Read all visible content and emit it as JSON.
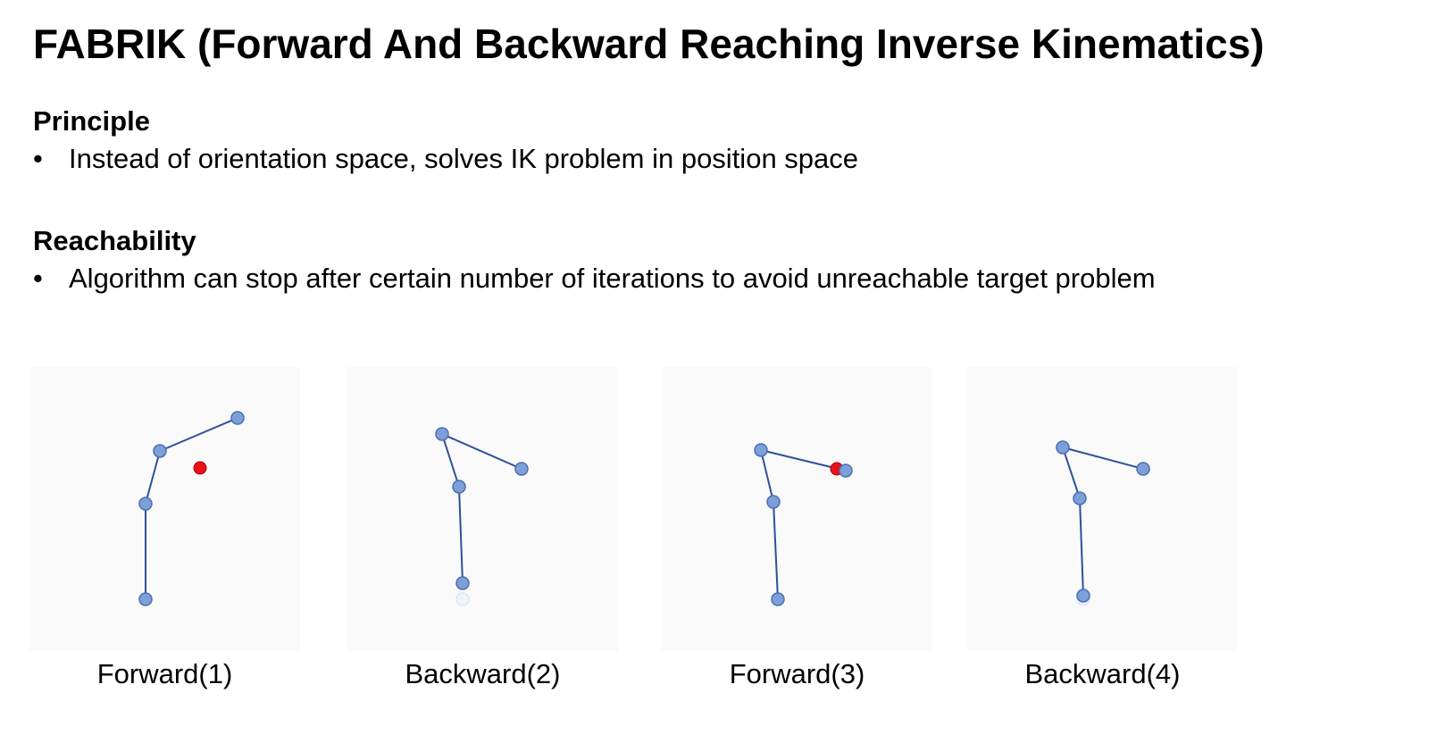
{
  "slide": {
    "title": "FABRIK (Forward And Backward Reaching Inverse Kinematics)"
  },
  "sections": [
    {
      "heading": "Principle",
      "bullets": [
        "Instead of orientation space, solves IK problem in position space"
      ]
    },
    {
      "heading": "Reachability",
      "bullets": [
        "Algorithm can stop after certain number of iterations to avoid unreachable target problem"
      ]
    }
  ],
  "bullet_glyph": "•",
  "colors": {
    "bone": "#2f4f9c",
    "joint_fill": "#7f9fd8",
    "joint_stroke": "#4a6fb5",
    "target": "#e8121b",
    "ghost_joint": "#dfe6f3",
    "panel_bg": "#fafafa"
  },
  "panels": [
    {
      "caption": "Forward(1)",
      "joints": [
        [
          130,
          260
        ],
        [
          130,
          153
        ],
        [
          146,
          94
        ],
        [
          233,
          57
        ]
      ],
      "target": [
        191,
        113
      ],
      "ghost": null
    },
    {
      "caption": "Backward(2)",
      "joints": [
        [
          129,
          242
        ],
        [
          125,
          134
        ],
        [
          106,
          75
        ],
        [
          195,
          114
        ]
      ],
      "target": null,
      "ghost": [
        129,
        260
      ]
    },
    {
      "caption": "Forward(3)",
      "joints": [
        [
          130,
          260
        ],
        [
          125,
          151
        ],
        [
          111,
          93
        ],
        [
          206,
          116
        ]
      ],
      "target": [
        196,
        114
      ],
      "ghost": null
    },
    {
      "caption": "Backward(4)",
      "joints": [
        [
          130,
          256
        ],
        [
          126,
          147
        ],
        [
          107,
          90
        ],
        [
          197,
          114
        ]
      ],
      "target": null,
      "ghost": [
        130,
        260
      ]
    }
  ]
}
